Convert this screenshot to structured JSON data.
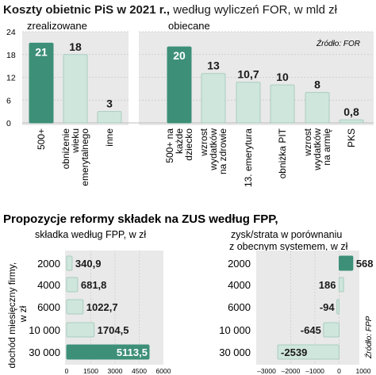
{
  "top": {
    "title_bold": "Koszty obietnic PiS w 2021 r.,",
    "title_rest": " według wyliczeń FOR, w mld zł",
    "source": "Źródło: FOR"
  },
  "bottom": {
    "title": "Propozycje reformy składek na ZUS według FPP,",
    "source": "Źródło: FPP"
  },
  "colors": {
    "accent": "#3d8f78",
    "light": "#cfe6dc",
    "light_stroke": "#a9cdbf",
    "panel": "#e9e9e9",
    "grid": "#c8c8c8"
  },
  "chart_data": [
    {
      "type": "bar",
      "ylim": [
        0,
        24
      ],
      "yticks": [
        0,
        6,
        12,
        18,
        24
      ],
      "groups": [
        {
          "label": "zrealizowane",
          "start": 0,
          "end": 2
        },
        {
          "label": "obiecane",
          "start": 3,
          "end": 9
        }
      ],
      "categories": [
        "500+",
        "obniżenie wieku emerytalnego",
        "inne",
        "500+ na każde dziecko",
        "wzrost wydatków na zdrowie",
        "13. emerytura",
        "obniżka PIT",
        "wzrost wydatków na armię",
        "PKS"
      ],
      "category_lines": [
        [
          "500+"
        ],
        [
          "obniżenie",
          "wieku",
          "emerytalnego"
        ],
        [
          "inne"
        ],
        [
          "500+ na",
          "każde",
          "dziecko"
        ],
        [
          "wzrost",
          "wydatków",
          "na zdrowie"
        ],
        [
          "13. emerytura"
        ],
        [
          "obniżka PIT"
        ],
        [
          "wzrost",
          "wydatków",
          "na armię"
        ],
        [
          "PKS"
        ]
      ],
      "values": [
        21,
        18,
        3,
        20,
        13,
        10.7,
        10,
        8,
        0.8
      ],
      "value_labels": [
        "21",
        "18",
        "3",
        "20",
        "13",
        "10,7",
        "10",
        "8",
        "0,8"
      ],
      "highlight": [
        0,
        3
      ]
    },
    {
      "type": "bar",
      "orientation": "horizontal",
      "title": "składka według FPP, w zł",
      "ylabel": "dochód miesięczny firmy, w zł",
      "categories": [
        "2000",
        "4000",
        "6000",
        "10 000",
        "30 000"
      ],
      "values": [
        340.9,
        681.8,
        1022.7,
        1704.5,
        5113.5
      ],
      "value_labels": [
        "340,9",
        "681,8",
        "1022,7",
        "1704,5",
        "5113,5"
      ],
      "xlim": [
        0,
        6000
      ],
      "xticks": [
        0,
        1500,
        3000,
        4500,
        6000
      ],
      "highlight": [
        4
      ]
    },
    {
      "type": "bar",
      "orientation": "horizontal",
      "title": "zysk/strata w porównaniu z obecnym systemem, w zł",
      "title_lines": [
        "zysk/strata w porównaniu",
        "z obecnym systemem, w zł"
      ],
      "categories": [
        "2000",
        "4000",
        "6000",
        "10 000",
        "30 000"
      ],
      "values": [
        568,
        186,
        -94,
        -645,
        -2539
      ],
      "value_labels": [
        "568",
        "186",
        "-94",
        "-645",
        "-2539"
      ],
      "xlim": [
        -3000,
        1000
      ],
      "xticks": [
        -3000,
        -2000,
        -1000,
        0,
        1000
      ],
      "xtick_labels": [
        "–3000",
        "–2000",
        "–1000",
        "0",
        "1000"
      ],
      "highlight": [
        0
      ]
    }
  ]
}
